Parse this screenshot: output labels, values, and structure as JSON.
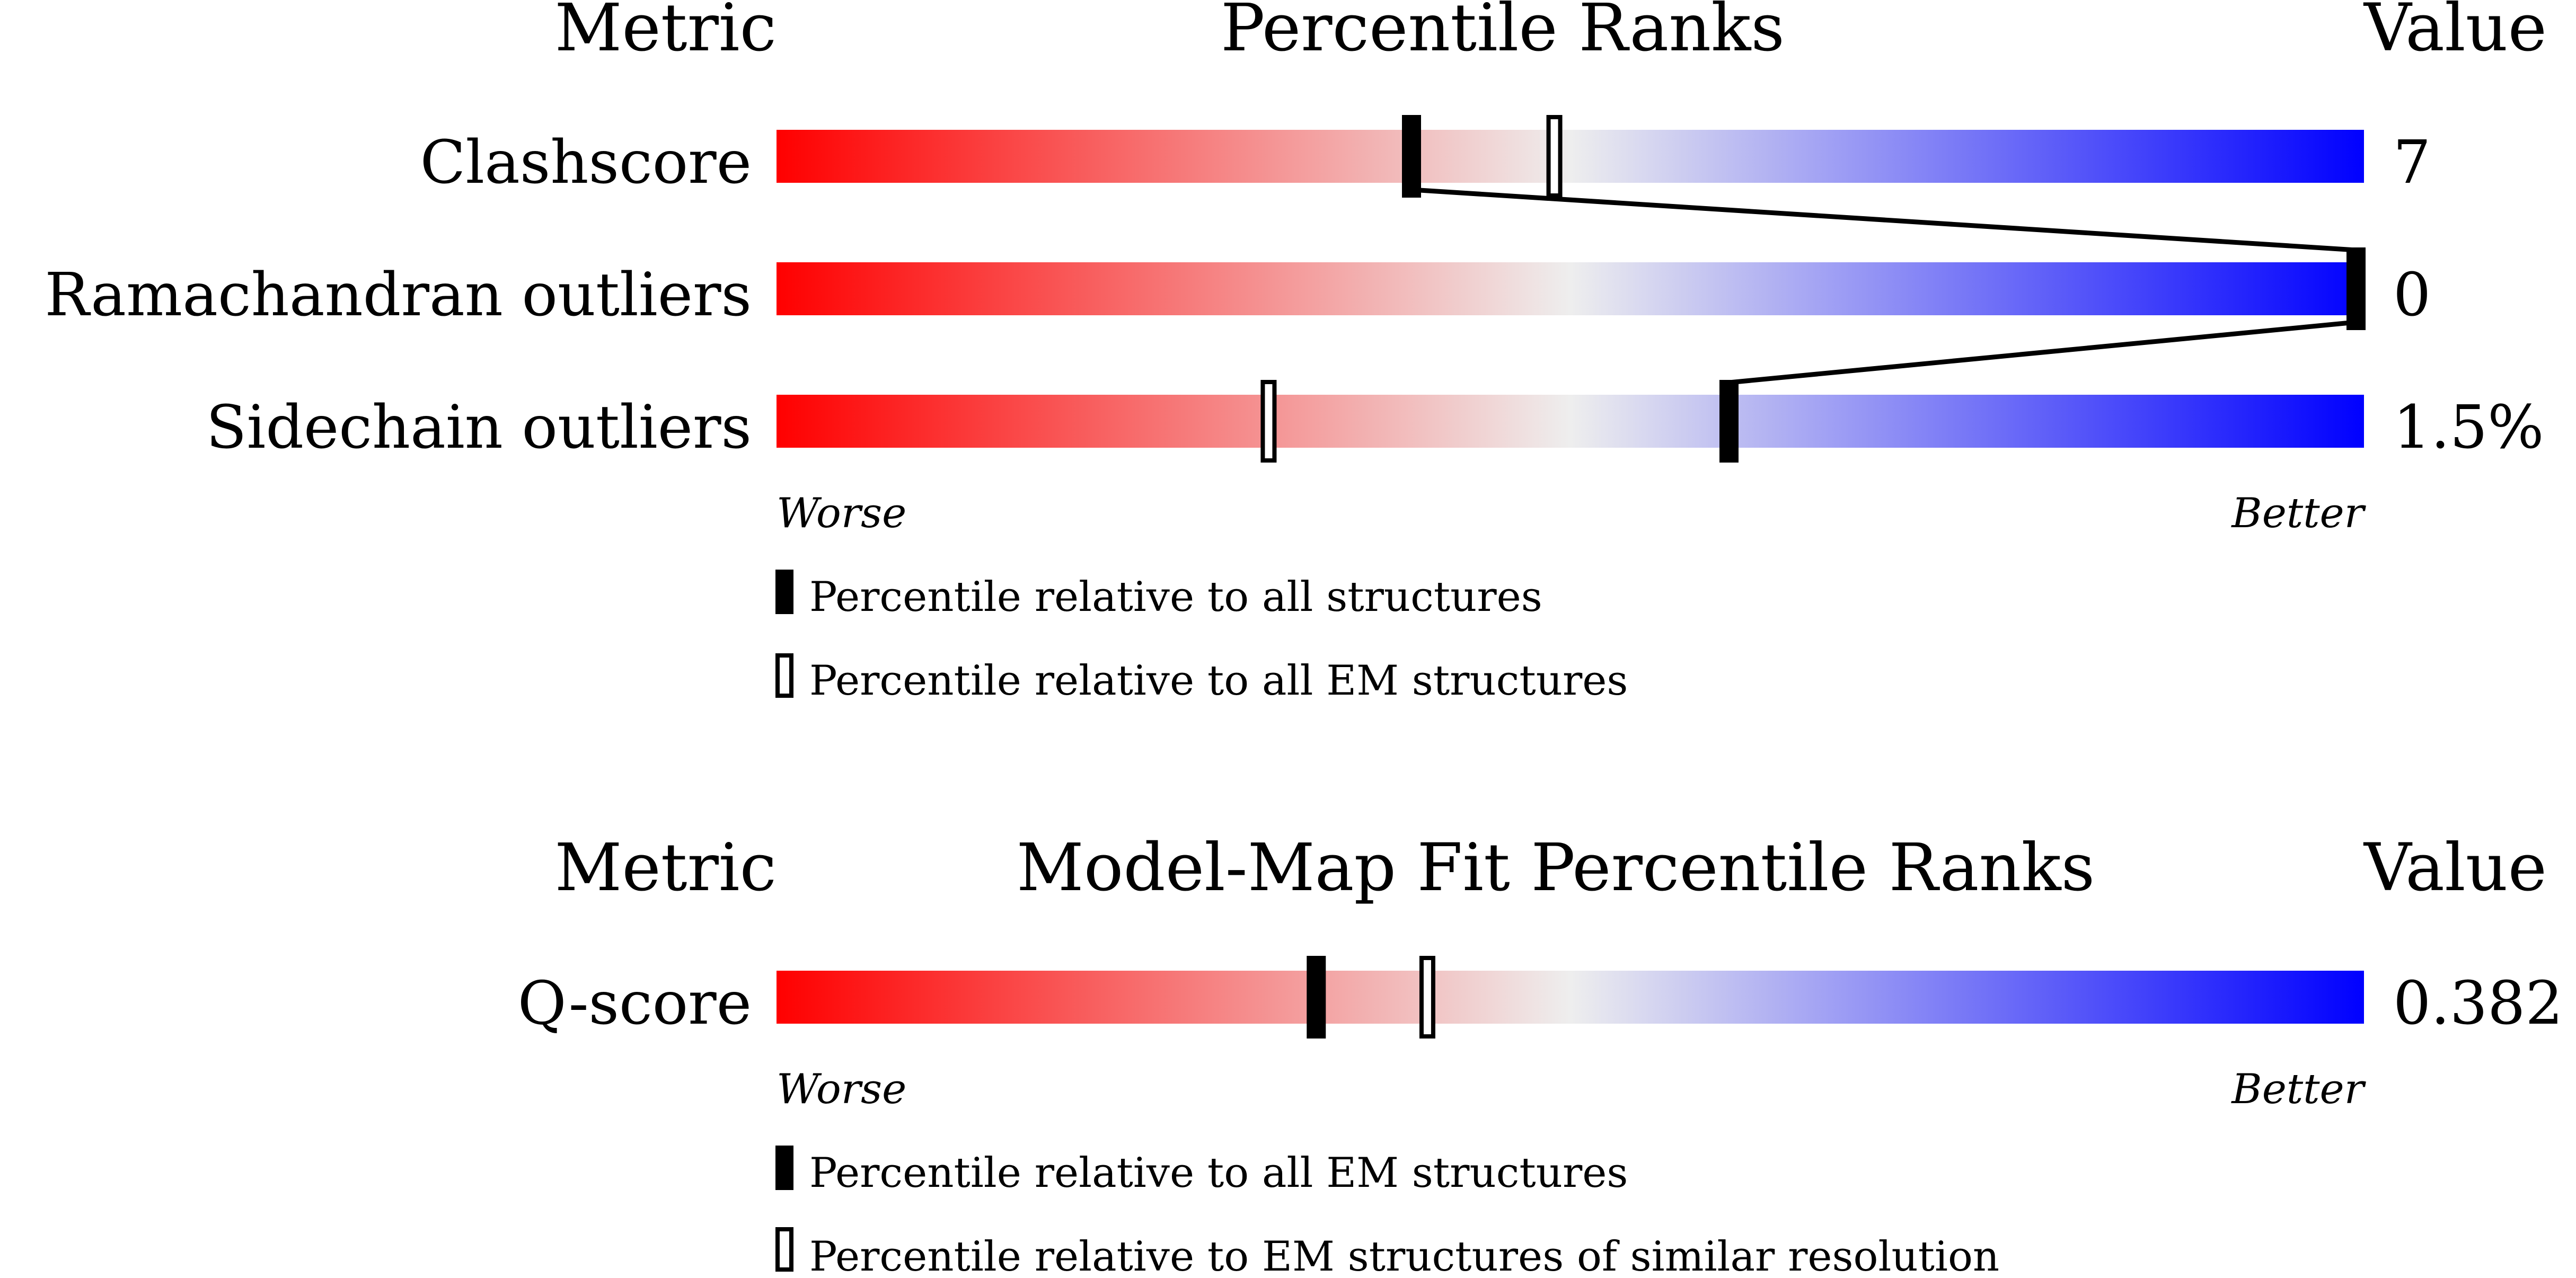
{
  "chart_data": [
    {
      "type": "bar",
      "headers": {
        "metric": "Metric",
        "title": "Percentile Ranks",
        "value": "Value"
      },
      "rows": [
        {
          "metric": "Clashscore",
          "value": "7",
          "percentile_all": 40,
          "percentile_subset": 49
        },
        {
          "metric": "Ramachandran outliers",
          "value": "0",
          "percentile_all": 100,
          "percentile_subset": 100
        },
        {
          "metric": "Sidechain outliers",
          "value": "1.5%",
          "percentile_all": 60,
          "percentile_subset": 31
        }
      ],
      "scale": {
        "left": "Worse",
        "right": "Better",
        "range": [
          0,
          100
        ]
      },
      "legend": [
        {
          "marker": "filled",
          "label": "Percentile relative to all structures"
        },
        {
          "marker": "outline",
          "label": "Percentile relative to all EM structures"
        }
      ],
      "colors": {
        "worse": "#ff0000",
        "middle": "#eeeeee",
        "better": "#0000ff",
        "marker": "#000000"
      }
    },
    {
      "type": "bar",
      "headers": {
        "metric": "Metric",
        "title": "Model-Map Fit Percentile Ranks",
        "value": "Value"
      },
      "rows": [
        {
          "metric": "Q-score",
          "value": "0.382",
          "percentile_all": 34,
          "percentile_subset": 41
        }
      ],
      "scale": {
        "left": "Worse",
        "right": "Better",
        "range": [
          0,
          100
        ]
      },
      "legend": [
        {
          "marker": "filled",
          "label": "Percentile relative to all EM structures"
        },
        {
          "marker": "outline",
          "label": "Percentile relative to EM structures of similar resolution"
        }
      ],
      "colors": {
        "worse": "#ff0000",
        "middle": "#eeeeee",
        "better": "#0000ff",
        "marker": "#000000"
      }
    }
  ]
}
